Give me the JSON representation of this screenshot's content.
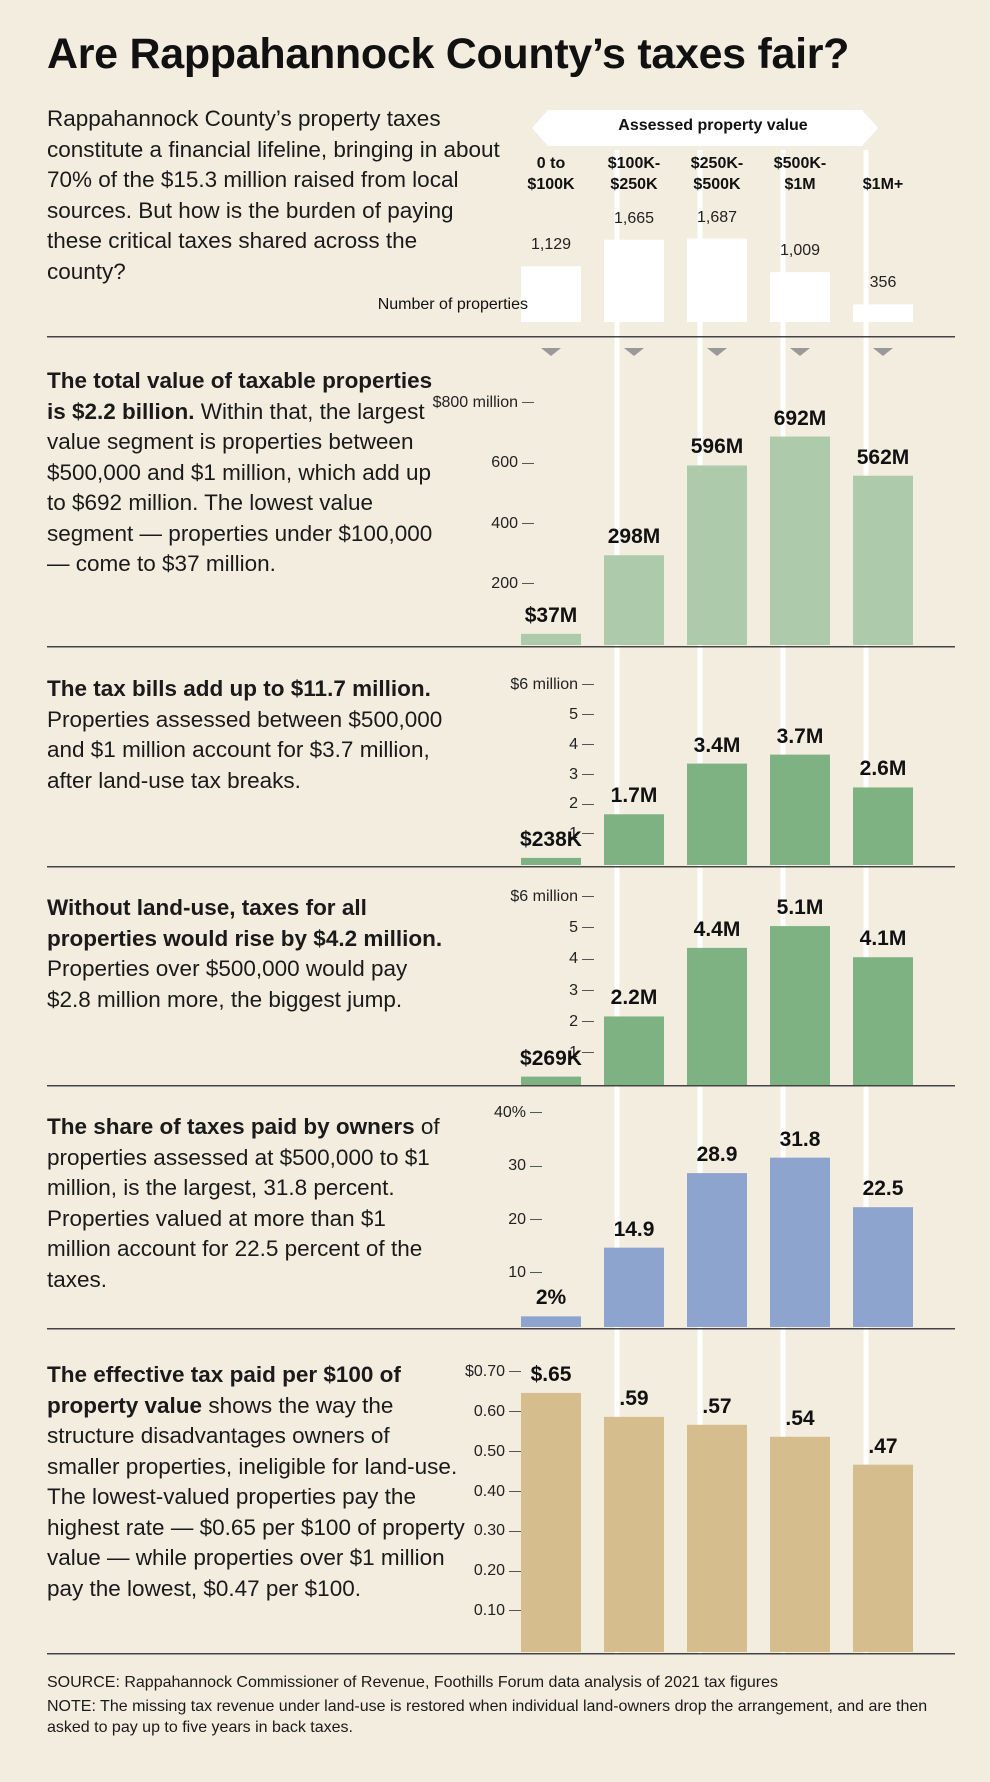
{
  "title": "Are Rappahannock County’s taxes fair?",
  "intro": "Rappahannock County’s property taxes constitute a financial lifeline, bringing in about 70% of the $15.3 million raised from local sources. But how is the burden of paying these critical taxes shared across the county?",
  "header_banner": "Assessed property value",
  "number_of_properties_label": "Number of properties",
  "columns": [
    {
      "l1": "0 to",
      "l2": "$100K"
    },
    {
      "l1": "$100K-",
      "l2": "$250K"
    },
    {
      "l1": "$250K-",
      "l2": "$500K"
    },
    {
      "l1": "$500K-",
      "l2": "$1M"
    },
    {
      "l1": "",
      "l2": "$1M+"
    }
  ],
  "sections": [
    {
      "bold": "The total value of taxable properties is $2.2 billion.",
      "rest": " Within that, the largest value segment is properties between $500,000 and $1 million, which add up to $692 million. The lowest value segment — properties under $100,000 — come to $37 million."
    },
    {
      "bold": "The tax bills add up to $11.7 million.",
      "rest": " Properties assessed between $500,000 and $1 million account for $3.7 million, after land-use tax breaks."
    },
    {
      "bold": "Without land-use, taxes for all properties would rise by $4.2 million.",
      "rest": " Properties over $500,000 would pay $2.8 million more, the biggest jump."
    },
    {
      "bold": "The share of taxes paid by owners",
      "rest": " of properties assessed at $500,000 to $1 million, is the largest, 31.8 percent. Properties valued at more than $1 million account for 22.5 percent of the taxes."
    },
    {
      "bold": "The effective tax paid per $100 of property value",
      "rest": " shows the way the structure disadvantages owners of smaller properties, ineligible for land-use. The lowest-valued properties pay the highest rate — $0.65 per $100 of property value — while properties over $1 million pay the lowest, $0.47 per $100."
    }
  ],
  "colors": {
    "background": "#f3ede0",
    "count_bar": "#ffffff",
    "value_bar": "#adcbaa",
    "tax_bar": "#7eb283",
    "share_bar": "#8da4cf",
    "rate_bar": "#d5bd8d"
  },
  "chart_data": [
    {
      "type": "bar",
      "title": "Number of properties",
      "categories": [
        "0 to $100K",
        "$100K-$250K",
        "$250K-$500K",
        "$500K-$1M",
        "$1M+"
      ],
      "values": [
        1129,
        1665,
        1687,
        1009,
        356
      ],
      "labels": [
        "1,129",
        "1,665",
        "1,687",
        "1,009",
        "356"
      ],
      "ylim": [
        0,
        1700
      ]
    },
    {
      "type": "bar",
      "title": "The total value of taxable properties",
      "categories": [
        "0 to $100K",
        "$100K-$250K",
        "$250K-$500K",
        "$500K-$1M",
        "$1M+"
      ],
      "values": [
        37,
        298,
        596,
        692,
        562
      ],
      "labels": [
        "$37M",
        "298M",
        "596M",
        "692M",
        "562M"
      ],
      "ylim": [
        0,
        800
      ],
      "ticks": [
        200,
        400,
        600,
        800
      ],
      "tick_labels": [
        "200",
        "400",
        "600",
        "$800 million"
      ]
    },
    {
      "type": "bar",
      "title": "The tax bills",
      "categories": [
        "0 to $100K",
        "$100K-$250K",
        "$250K-$500K",
        "$500K-$1M",
        "$1M+"
      ],
      "values": [
        0.238,
        1.7,
        3.4,
        3.7,
        2.6
      ],
      "labels": [
        "$238K",
        "1.7M",
        "3.4M",
        "3.7M",
        "2.6M"
      ],
      "ylim": [
        0,
        6
      ],
      "ticks": [
        1,
        2,
        3,
        4,
        5,
        6
      ],
      "tick_labels": [
        "1",
        "2",
        "3",
        "4",
        "5",
        "$6 million"
      ]
    },
    {
      "type": "bar",
      "title": "Without land-use",
      "categories": [
        "0 to $100K",
        "$100K-$250K",
        "$250K-$500K",
        "$500K-$1M",
        "$1M+"
      ],
      "values": [
        0.269,
        2.2,
        4.4,
        5.1,
        4.1
      ],
      "labels": [
        "$269K",
        "2.2M",
        "4.4M",
        "5.1M",
        "4.1M"
      ],
      "ylim": [
        0,
        6
      ],
      "ticks": [
        1,
        2,
        3,
        4,
        5,
        6
      ],
      "tick_labels": [
        "1",
        "2",
        "3",
        "4",
        "5",
        "$6 million"
      ]
    },
    {
      "type": "bar",
      "title": "The share of taxes paid",
      "categories": [
        "0 to $100K",
        "$100K-$250K",
        "$250K-$500K",
        "$500K-$1M",
        "$1M+"
      ],
      "values": [
        2,
        14.9,
        28.9,
        31.8,
        22.5
      ],
      "labels": [
        "2%",
        "14.9",
        "28.9",
        "31.8",
        "22.5"
      ],
      "ylim": [
        0,
        40
      ],
      "ticks": [
        10,
        20,
        30,
        40
      ],
      "tick_labels": [
        "10",
        "20",
        "30",
        "40%"
      ]
    },
    {
      "type": "bar",
      "title": "The effective tax paid per $100 of property value",
      "categories": [
        "0 to $100K",
        "$100K-$250K",
        "$250K-$500K",
        "$500K-$1M",
        "$1M+"
      ],
      "values": [
        0.65,
        0.59,
        0.57,
        0.54,
        0.47
      ],
      "labels": [
        "$.65",
        ".59",
        ".57",
        ".54",
        ".47"
      ],
      "ylim": [
        0,
        0.7
      ],
      "ticks": [
        0.1,
        0.2,
        0.3,
        0.4,
        0.5,
        0.6,
        0.7
      ],
      "tick_labels": [
        "0.10",
        "0.20",
        "0.30",
        "0.40",
        "0.50",
        "0.60",
        "$0.70"
      ]
    }
  ],
  "footer": {
    "source": "SOURCE: Rappahannock Commissioner of Revenue, Foothills Forum data analysis of 2021 tax figures",
    "note": "NOTE: The missing tax revenue under land-use is restored when individual land-owners drop the arrangement, and are then asked to pay up to five years in back taxes."
  }
}
